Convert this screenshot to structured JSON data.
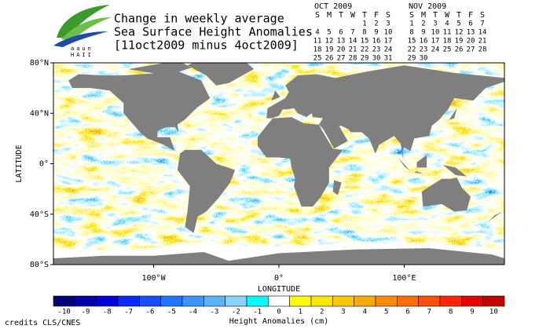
{
  "logo": {
    "line1": "aaun",
    "line2": "HAII"
  },
  "title": {
    "lines": [
      "Change in weekly average",
      "Sea Surface Height Anomalies",
      "[11oct2009 minus 4oct2009]"
    ]
  },
  "calendars": [
    {
      "month": "OCT 2009",
      "weekdays": [
        "S",
        "M",
        "T",
        "W",
        "T",
        "F",
        "S"
      ],
      "highlight_weeks": [
        1,
        2
      ],
      "weeks": [
        [
          null,
          null,
          null,
          null,
          1,
          2,
          3
        ],
        [
          4,
          5,
          6,
          7,
          8,
          9,
          10
        ],
        [
          11,
          12,
          13,
          14,
          15,
          16,
          17
        ],
        [
          18,
          19,
          20,
          21,
          22,
          23,
          24
        ],
        [
          25,
          26,
          27,
          28,
          29,
          30,
          31
        ]
      ]
    },
    {
      "month": "NOV 2009",
      "weekdays": [
        "S",
        "M",
        "T",
        "W",
        "T",
        "F",
        "S"
      ],
      "highlight_weeks": [],
      "weeks": [
        [
          1,
          2,
          3,
          4,
          5,
          6,
          7
        ],
        [
          8,
          9,
          10,
          11,
          12,
          13,
          14
        ],
        [
          15,
          16,
          17,
          18,
          19,
          20,
          21
        ],
        [
          22,
          23,
          24,
          25,
          26,
          27,
          28
        ],
        [
          29,
          30,
          null,
          null,
          null,
          null,
          null
        ]
      ]
    }
  ],
  "map": {
    "ylabel": "LATITUDE",
    "xlabel": "LONGITUDE",
    "lonlim": [
      -180,
      180
    ],
    "lat_ticks": [
      {
        "value": 80,
        "label": "80°N"
      },
      {
        "value": 40,
        "label": "40°N"
      },
      {
        "value": 0,
        "label": "0°"
      },
      {
        "value": -40,
        "label": "40°S"
      },
      {
        "value": -80,
        "label": "80°S"
      }
    ],
    "lon_ticks": [
      {
        "value": -100,
        "label": "100°W"
      },
      {
        "value": 0,
        "label": "0°"
      },
      {
        "value": 100,
        "label": "100°E"
      }
    ]
  },
  "colorbar": {
    "label": "Height Anomalies (cm)",
    "values": [
      -10,
      -9,
      -8,
      -7,
      -6,
      -5,
      -4,
      -3,
      -2,
      -1,
      0,
      1,
      2,
      3,
      4,
      5,
      6,
      7,
      8,
      9,
      10
    ],
    "colors": [
      "#000078",
      "#0000a8",
      "#0000d8",
      "#0a28ff",
      "#1450ff",
      "#1e78ff",
      "#3c96ff",
      "#5ab4ff",
      "#8cd2ff",
      "#00ffff",
      "#ffffff",
      "#ffff00",
      "#ffe600",
      "#ffc800",
      "#ffaa00",
      "#ff8c00",
      "#ff6e00",
      "#ff5000",
      "#ff2800",
      "#e60000",
      "#c00000"
    ]
  },
  "credits": "credits CLS/CNES"
}
